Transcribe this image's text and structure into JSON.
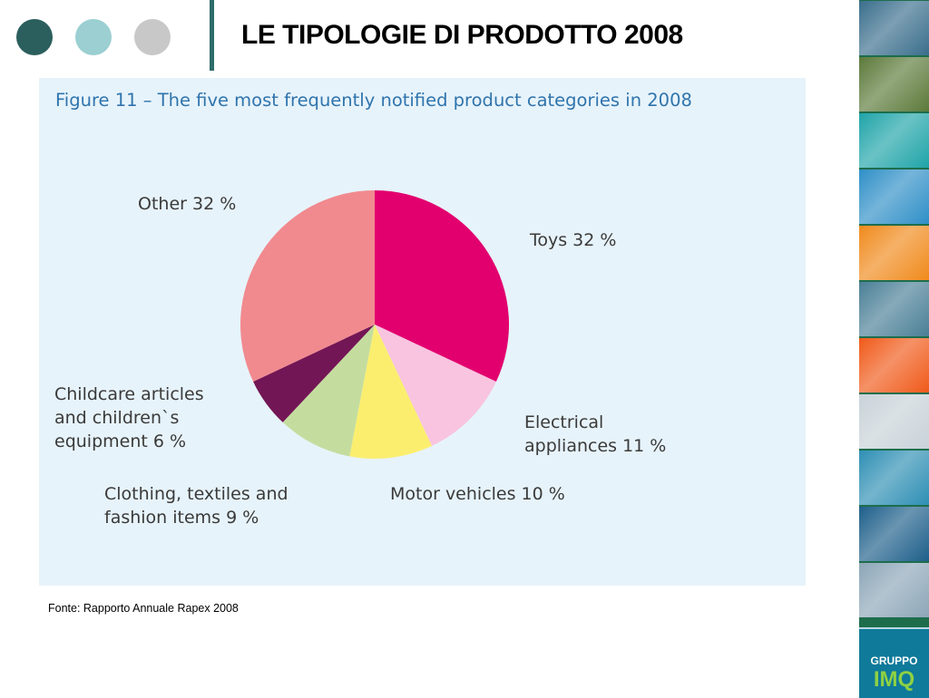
{
  "header": {
    "title": "LE TIPOLOGIE DI PRODOTTO 2008",
    "dots": [
      "#2b5f5d",
      "#9bcfd2",
      "#c8c8c8"
    ]
  },
  "figure": {
    "title": "Figure 11 – The five most frequently notified product categories in 2008"
  },
  "chart_data": {
    "type": "pie",
    "title": "Figure 11 – The five most frequently notified product categories in 2008",
    "slices": [
      {
        "label": [
          "Toys 32 %"
        ],
        "value": 32,
        "color": "#e2006f"
      },
      {
        "label": [
          "Electrical",
          "appliances 11 %"
        ],
        "value": 11,
        "color": "#f8c4df"
      },
      {
        "label": [
          "Motor vehicles 10 %"
        ],
        "value": 10,
        "color": "#fbee6f"
      },
      {
        "label": [
          "Clothing, textiles and",
          "fashion items 9 %"
        ],
        "value": 9,
        "color": "#c4dd9f"
      },
      {
        "label": [
          "Childcare articles",
          "and children`s",
          "equipment 6 %"
        ],
        "value": 6,
        "color": "#731655"
      },
      {
        "label": [
          "Other 32 %"
        ],
        "value": 32,
        "color": "#f18a8f"
      }
    ]
  },
  "source": "Fonte: Rapporto Annuale Rapex 2008",
  "brand": {
    "line1": "GRUPPO",
    "line2": "IMQ",
    "tile_colors": [
      "#3a6e8c",
      "#5c7a3a",
      "#1fa4a8",
      "#2f8fc7",
      "#f08a1c",
      "#4a7f96",
      "#f05a1a",
      "#c8d2d8",
      "#2e8fb4",
      "#1e5f8a",
      "#8da6b8"
    ]
  }
}
